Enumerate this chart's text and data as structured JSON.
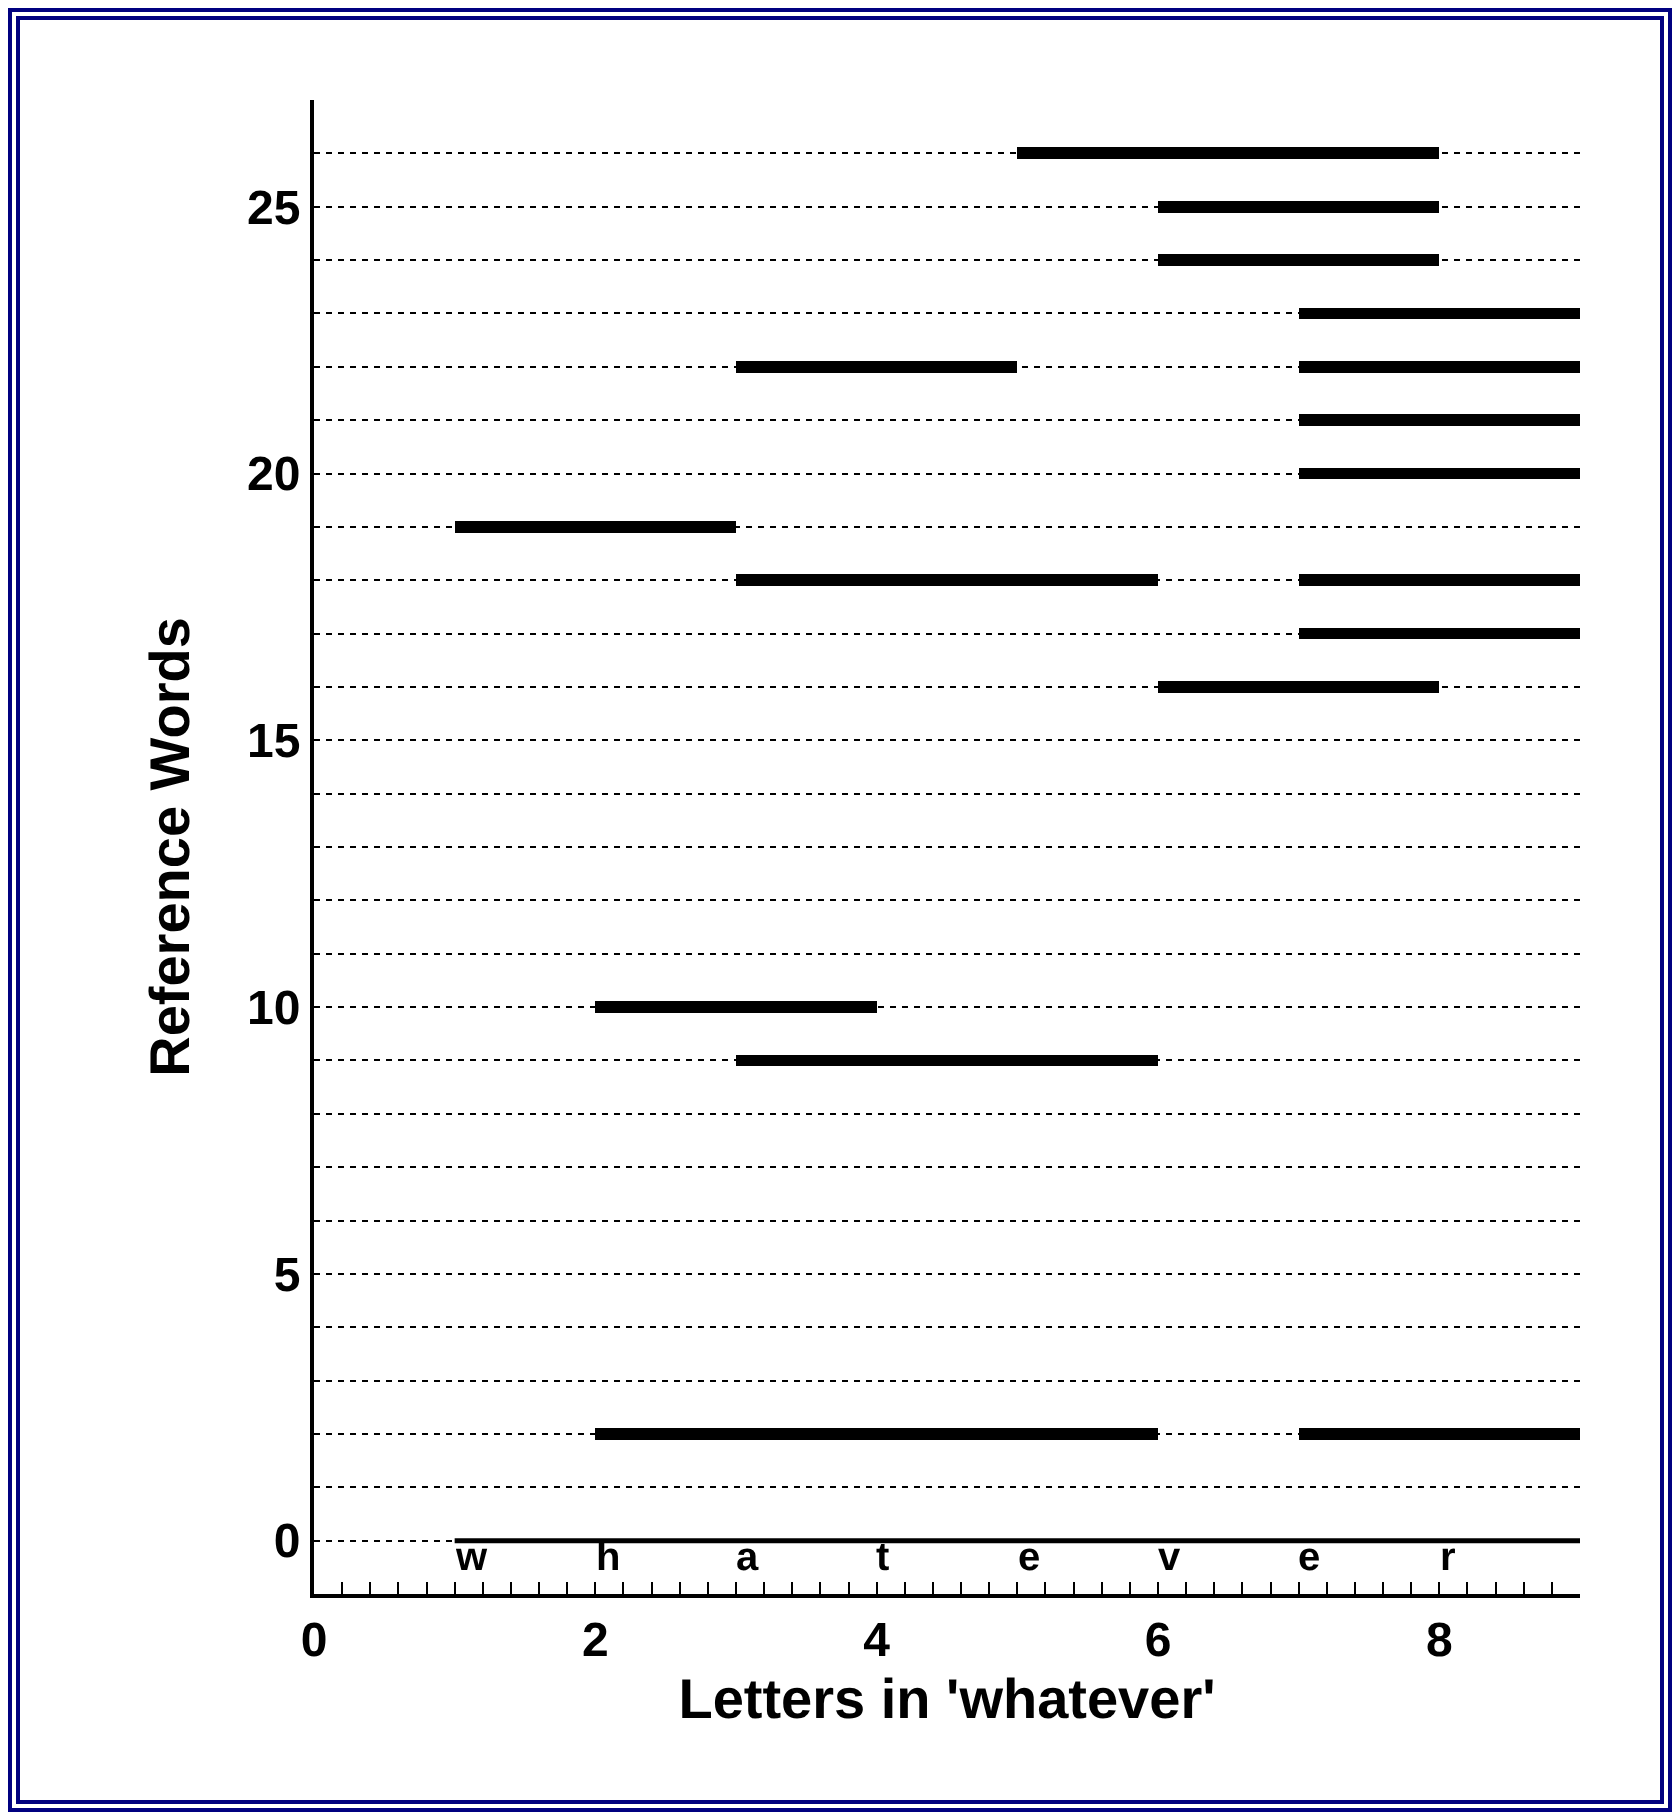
{
  "chart_data": {
    "type": "bar",
    "orientation": "horizontal",
    "xlabel": "Letters in 'whatever'",
    "ylabel": "Reference Words",
    "series": [
      {
        "color": "#000000",
        "x": [
          2,
          18,
          22
        ],
        "base": [
          2,
          3,
          3
        ],
        "values": [
          4,
          3,
          2
        ]
      },
      {
        "color": "#000000",
        "x": [
          2,
          9,
          10,
          16,
          17,
          18,
          19,
          20,
          21,
          22,
          23,
          24,
          25,
          26
        ],
        "base": [
          7,
          3,
          2,
          6,
          7,
          7,
          1,
          7,
          7,
          7,
          7,
          6,
          6,
          5
        ],
        "values": [
          2,
          3,
          2,
          2,
          2,
          2,
          2,
          2,
          2,
          2,
          2,
          2,
          2,
          3
        ]
      }
    ],
    "xlim": [
      0,
      9
    ],
    "ylim": [
      -1,
      27
    ],
    "xticks": [
      0,
      {
        "value": 0.2,
        "label": null
      },
      {
        "value": 0.4,
        "label": null
      },
      {
        "value": 0.6,
        "label": null
      },
      {
        "value": 0.8,
        "label": null
      },
      {
        "value": 1,
        "label": null
      },
      {
        "value": 1.2,
        "label": null
      },
      {
        "value": 1.4,
        "label": null
      },
      {
        "value": 1.6,
        "label": null
      },
      {
        "value": 1.8,
        "label": null
      },
      2,
      {
        "value": 2.2,
        "label": null
      },
      {
        "value": 2.4,
        "label": null
      },
      {
        "value": 2.6,
        "label": null
      },
      {
        "value": 2.8,
        "label": null
      },
      {
        "value": 3,
        "label": null
      },
      {
        "value": 3.2,
        "label": null
      },
      {
        "value": 3.4,
        "label": null
      },
      {
        "value": 3.6,
        "label": null
      },
      {
        "value": 3.8,
        "label": null
      },
      4,
      {
        "value": 4.2,
        "label": null
      },
      {
        "value": 4.4,
        "label": null
      },
      {
        "value": 4.6,
        "label": null
      },
      {
        "value": 4.8,
        "label": null
      },
      {
        "value": 5,
        "label": null
      },
      {
        "value": 5.2,
        "label": null
      },
      {
        "value": 5.4,
        "label": null
      },
      {
        "value": 5.6,
        "label": null
      },
      {
        "value": 5.8,
        "label": null
      },
      6,
      {
        "value": 6.2,
        "label": null
      },
      {
        "value": 6.4,
        "label": null
      },
      {
        "value": 6.6,
        "label": null
      },
      {
        "value": 6.8,
        "label": null
      },
      {
        "value": 7,
        "label": null
      },
      {
        "value": 7.2,
        "label": null
      },
      {
        "value": 7.4,
        "label": null
      },
      {
        "value": 7.6,
        "label": null
      },
      {
        "value": 7.8,
        "label": null
      },
      8,
      {
        "value": 8.2,
        "label": null
      },
      {
        "value": 8.4,
        "label": null
      },
      {
        "value": 8.6,
        "label": null
      },
      {
        "value": 8.8,
        "label": null
      }
    ],
    "yticks": [
      0,
      {
        "value": 1,
        "label": null
      },
      {
        "value": 2,
        "label": null
      },
      {
        "value": 3,
        "label": null
      },
      {
        "value": 4,
        "label": null
      },
      5,
      {
        "value": 6,
        "label": null
      },
      {
        "value": 7,
        "label": null
      },
      {
        "value": 8,
        "label": null
      },
      {
        "value": 9,
        "label": null
      },
      10,
      {
        "value": 11,
        "label": null
      },
      {
        "value": 12,
        "label": null
      },
      {
        "value": 13,
        "label": null
      },
      {
        "value": 14,
        "label": null
      },
      15,
      {
        "value": 16,
        "label": null
      },
      {
        "value": 17,
        "label": null
      },
      {
        "value": 18,
        "label": null
      },
      {
        "value": 19,
        "label": null
      },
      20,
      {
        "value": 21,
        "label": null
      },
      {
        "value": 22,
        "label": null
      },
      {
        "value": 23,
        "label": null
      },
      {
        "value": 24,
        "label": null
      },
      25,
      {
        "value": 26,
        "label": null
      }
    ],
    "grid": "y",
    "ref_lines": [
      {
        "axis": "y",
        "value": 0,
        "color": "#000000"
      }
    ],
    "annotations": [
      {
        "text": "w",
        "x": 1,
        "y": 0
      },
      {
        "text": "h",
        "x": 2,
        "y": 0
      },
      {
        "text": "a",
        "x": 3,
        "y": 0
      },
      {
        "text": "t",
        "x": 4,
        "y": 0
      },
      {
        "text": "e",
        "x": 5,
        "y": 0
      },
      {
        "text": "v",
        "x": 6,
        "y": 0
      },
      {
        "text": "e",
        "x": 7,
        "y": 0
      },
      {
        "text": "r",
        "x": 8,
        "y": 0
      }
    ]
  }
}
